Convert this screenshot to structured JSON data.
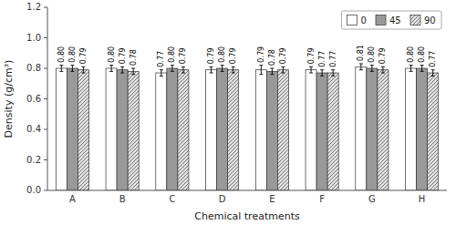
{
  "chart_data": {
    "type": "bar",
    "categories": [
      "A",
      "B",
      "C",
      "D",
      "E",
      "F",
      "G",
      "H"
    ],
    "series": [
      {
        "name": "0",
        "color": "#ffffff",
        "values": [
          0.8,
          0.8,
          0.77,
          0.79,
          0.79,
          0.79,
          0.81,
          0.8
        ],
        "value_labels": [
          "0.80",
          "0.80",
          "0.77",
          "0.79",
          "0.79",
          "0.79",
          "0.81",
          "0.80"
        ],
        "errors": [
          0.02,
          0.02,
          0.02,
          0.02,
          0.03,
          0.02,
          0.02,
          0.02
        ]
      },
      {
        "name": "45",
        "color": "#999999",
        "values": [
          0.8,
          0.79,
          0.8,
          0.8,
          0.78,
          0.77,
          0.8,
          0.8
        ],
        "value_labels": [
          "0.80",
          "0.79",
          "0.80",
          "0.80",
          "0.78",
          "0.77",
          "0.80",
          "0.80"
        ],
        "errors": [
          0.02,
          0.02,
          0.02,
          0.02,
          0.02,
          0.02,
          0.02,
          0.02
        ]
      },
      {
        "name": "90",
        "color": "#e0e0e0",
        "values": [
          0.79,
          0.78,
          0.79,
          0.79,
          0.79,
          0.77,
          0.79,
          0.77
        ],
        "value_labels": [
          "0.79",
          "0.78",
          "0.79",
          "0.79",
          "0.79",
          "0.77",
          "0.79",
          "0.77"
        ],
        "errors": [
          0.02,
          0.02,
          0.02,
          0.02,
          0.02,
          0.02,
          0.02,
          0.02
        ]
      }
    ],
    "xlabel": "Chemical treatments",
    "ylabel": "Density (g/cm³)",
    "ylim": [
      0,
      1.2
    ],
    "yticks": [
      {
        "value": 0,
        "label": "0.0"
      },
      0.2,
      0.4,
      0.6,
      0.8,
      {
        "value": 1,
        "label": "1.0"
      },
      1.2
    ],
    "legend": "upper right",
    "data_labels": true
  }
}
